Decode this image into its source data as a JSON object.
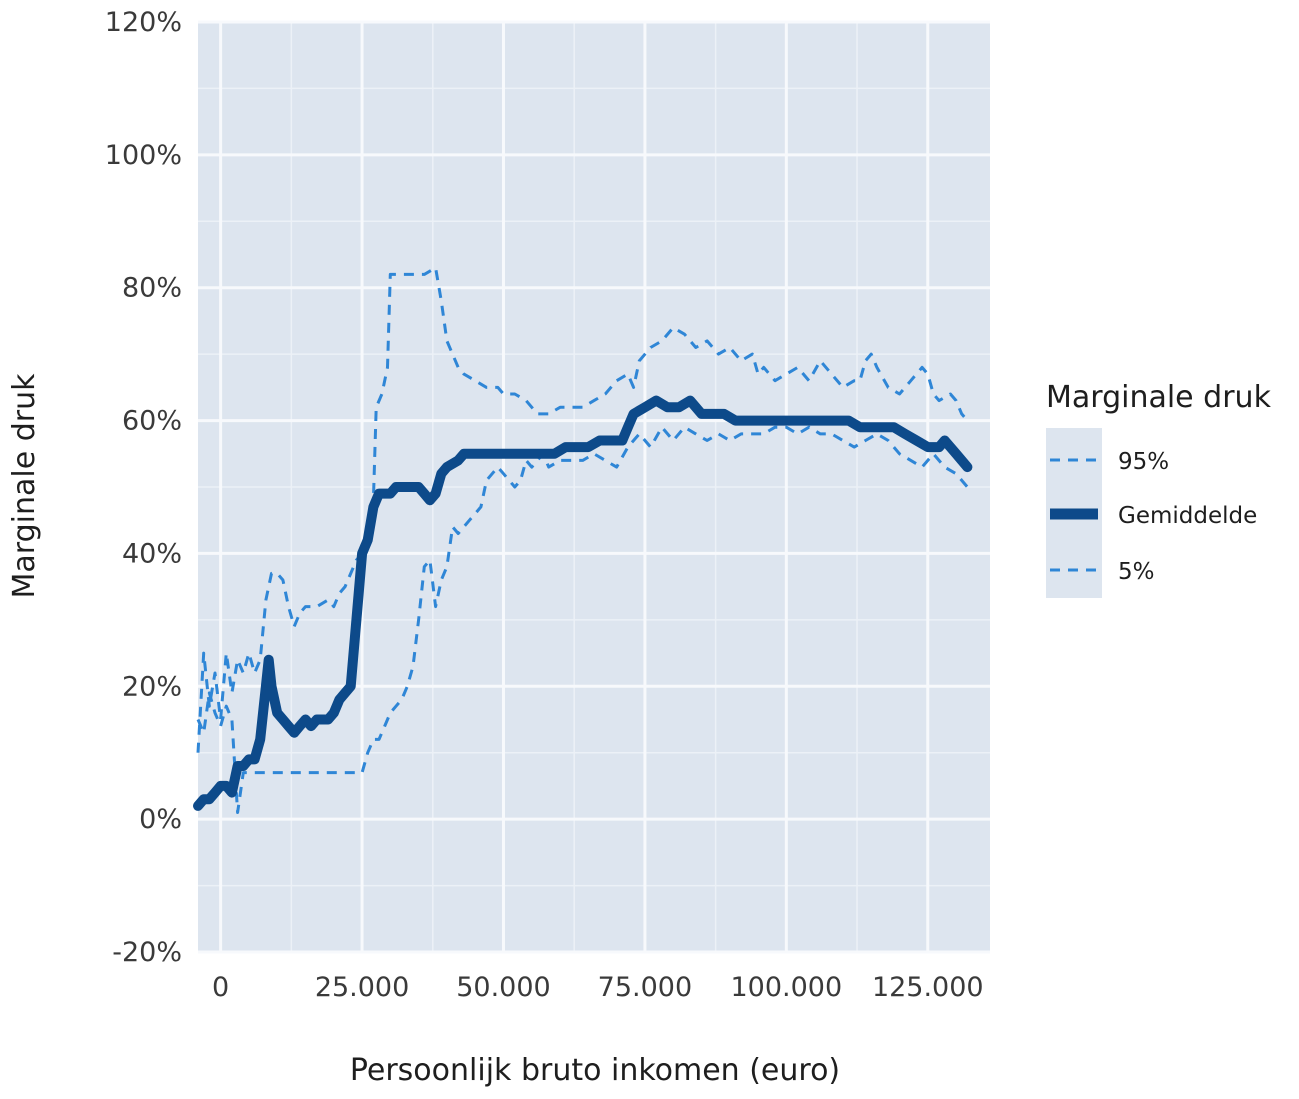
{
  "chart_data": {
    "type": "line",
    "xlabel": "Persoonlijk bruto inkomen (euro)",
    "ylabel": "Marginale druk",
    "xlim": [
      -4000,
      136000
    ],
    "ylim": [
      -20,
      120
    ],
    "x_ticks": [
      0,
      25000,
      50000,
      75000,
      100000,
      125000
    ],
    "x_tick_labels": [
      "0",
      "25.000",
      "50.000",
      "75.000",
      "100.000",
      "125.000"
    ],
    "y_ticks": [
      -20,
      0,
      20,
      40,
      60,
      80,
      100,
      120
    ],
    "y_tick_labels": [
      "-20%",
      "0%",
      "20%",
      "40%",
      "60%",
      "80%",
      "100%",
      "120%"
    ],
    "grid": true,
    "legend": {
      "title": "Marginale druk",
      "position": "right",
      "entries": [
        "95%",
        "Gemiddelde",
        "5%"
      ]
    },
    "series": [
      {
        "name": "95%",
        "style": "dashed",
        "color": "#2f86d6",
        "points": [
          [
            -4000,
            10
          ],
          [
            -3000,
            25
          ],
          [
            -2000,
            17
          ],
          [
            -1000,
            22
          ],
          [
            0,
            15
          ],
          [
            1000,
            25
          ],
          [
            2000,
            19
          ],
          [
            3000,
            24
          ],
          [
            4000,
            22
          ],
          [
            5000,
            25
          ],
          [
            6000,
            22
          ],
          [
            7000,
            24
          ],
          [
            8000,
            33
          ],
          [
            9000,
            37
          ],
          [
            10000,
            37
          ],
          [
            11000,
            36
          ],
          [
            12000,
            32
          ],
          [
            13000,
            29
          ],
          [
            14000,
            31
          ],
          [
            15000,
            32
          ],
          [
            17000,
            32
          ],
          [
            19000,
            33
          ],
          [
            20000,
            32
          ],
          [
            21000,
            34
          ],
          [
            22000,
            35
          ],
          [
            24000,
            39
          ],
          [
            25000,
            40
          ],
          [
            26000,
            41
          ],
          [
            27000,
            48
          ],
          [
            27500,
            62
          ],
          [
            28500,
            64
          ],
          [
            29500,
            68
          ],
          [
            30000,
            82
          ],
          [
            33000,
            82
          ],
          [
            36000,
            82
          ],
          [
            38000,
            83
          ],
          [
            39000,
            78
          ],
          [
            40000,
            72
          ],
          [
            42000,
            68
          ],
          [
            43000,
            67
          ],
          [
            45000,
            66
          ],
          [
            47000,
            65
          ],
          [
            49000,
            65
          ],
          [
            50000,
            64
          ],
          [
            52000,
            64
          ],
          [
            54000,
            63
          ],
          [
            56000,
            61
          ],
          [
            58000,
            61
          ],
          [
            60000,
            62
          ],
          [
            62000,
            62
          ],
          [
            64000,
            62
          ],
          [
            66000,
            63
          ],
          [
            68000,
            64
          ],
          [
            70000,
            66
          ],
          [
            72000,
            67
          ],
          [
            73000,
            65
          ],
          [
            74000,
            69
          ],
          [
            76000,
            71
          ],
          [
            78000,
            72
          ],
          [
            80000,
            74
          ],
          [
            82000,
            73
          ],
          [
            84000,
            71
          ],
          [
            86000,
            72
          ],
          [
            88000,
            70
          ],
          [
            90000,
            71
          ],
          [
            92000,
            69
          ],
          [
            94000,
            70
          ],
          [
            95000,
            67
          ],
          [
            96000,
            68
          ],
          [
            98000,
            66
          ],
          [
            100000,
            67
          ],
          [
            102000,
            68
          ],
          [
            104000,
            66
          ],
          [
            106000,
            69
          ],
          [
            108000,
            67
          ],
          [
            110000,
            65
          ],
          [
            112000,
            66
          ],
          [
            113000,
            66
          ],
          [
            114000,
            69
          ],
          [
            115000,
            70
          ],
          [
            116000,
            68
          ],
          [
            118000,
            65
          ],
          [
            120000,
            64
          ],
          [
            122000,
            66
          ],
          [
            124000,
            68
          ],
          [
            125000,
            67
          ],
          [
            126000,
            64
          ],
          [
            127000,
            63
          ],
          [
            129000,
            64
          ],
          [
            130000,
            63
          ],
          [
            131000,
            61
          ],
          [
            132000,
            60
          ]
        ]
      },
      {
        "name": "Gemiddelde",
        "style": "solid",
        "color": "#0d4a8a",
        "points": [
          [
            -4000,
            2
          ],
          [
            -3000,
            3
          ],
          [
            -2000,
            3
          ],
          [
            -1000,
            4
          ],
          [
            0,
            5
          ],
          [
            1000,
            5
          ],
          [
            2000,
            4
          ],
          [
            3000,
            8
          ],
          [
            4000,
            8
          ],
          [
            5000,
            9
          ],
          [
            6000,
            9
          ],
          [
            7000,
            12
          ],
          [
            8000,
            20
          ],
          [
            8500,
            24
          ],
          [
            9000,
            20
          ],
          [
            10000,
            16
          ],
          [
            11000,
            15
          ],
          [
            12000,
            14
          ],
          [
            13000,
            13
          ],
          [
            14000,
            14
          ],
          [
            15000,
            15
          ],
          [
            16000,
            14
          ],
          [
            17000,
            15
          ],
          [
            18000,
            15
          ],
          [
            19000,
            15
          ],
          [
            20000,
            16
          ],
          [
            21000,
            18
          ],
          [
            22000,
            19
          ],
          [
            23000,
            20
          ],
          [
            24000,
            30
          ],
          [
            25000,
            40
          ],
          [
            26000,
            42
          ],
          [
            27000,
            47
          ],
          [
            28000,
            49
          ],
          [
            30000,
            49
          ],
          [
            31000,
            50
          ],
          [
            33000,
            50
          ],
          [
            35000,
            50
          ],
          [
            36000,
            49
          ],
          [
            37000,
            48
          ],
          [
            38000,
            49
          ],
          [
            39000,
            52
          ],
          [
            40000,
            53
          ],
          [
            42000,
            54
          ],
          [
            43000,
            55
          ],
          [
            45000,
            55
          ],
          [
            47000,
            55
          ],
          [
            49000,
            55
          ],
          [
            51000,
            55
          ],
          [
            53000,
            55
          ],
          [
            55000,
            55
          ],
          [
            57000,
            55
          ],
          [
            59000,
            55
          ],
          [
            61000,
            56
          ],
          [
            63000,
            56
          ],
          [
            65000,
            56
          ],
          [
            67000,
            57
          ],
          [
            69000,
            57
          ],
          [
            71000,
            57
          ],
          [
            72000,
            59
          ],
          [
            73000,
            61
          ],
          [
            75000,
            62
          ],
          [
            77000,
            63
          ],
          [
            79000,
            62
          ],
          [
            81000,
            62
          ],
          [
            83000,
            63
          ],
          [
            85000,
            61
          ],
          [
            87000,
            61
          ],
          [
            89000,
            61
          ],
          [
            91000,
            60
          ],
          [
            93000,
            60
          ],
          [
            95000,
            60
          ],
          [
            97000,
            60
          ],
          [
            99000,
            60
          ],
          [
            101000,
            60
          ],
          [
            103000,
            60
          ],
          [
            105000,
            60
          ],
          [
            107000,
            60
          ],
          [
            109000,
            60
          ],
          [
            111000,
            60
          ],
          [
            113000,
            59
          ],
          [
            115000,
            59
          ],
          [
            117000,
            59
          ],
          [
            119000,
            59
          ],
          [
            121000,
            58
          ],
          [
            123000,
            57
          ],
          [
            125000,
            56
          ],
          [
            127000,
            56
          ],
          [
            128000,
            57
          ],
          [
            129000,
            56
          ],
          [
            130000,
            55
          ],
          [
            131000,
            54
          ],
          [
            132000,
            53
          ]
        ]
      },
      {
        "name": "5%",
        "style": "dashed",
        "color": "#2f86d6",
        "points": [
          [
            -4000,
            15
          ],
          [
            -3000,
            13
          ],
          [
            -2000,
            19
          ],
          [
            -1000,
            16
          ],
          [
            0,
            14
          ],
          [
            1000,
            17
          ],
          [
            2000,
            15
          ],
          [
            3000,
            1
          ],
          [
            4000,
            7
          ],
          [
            7000,
            7
          ],
          [
            10000,
            7
          ],
          [
            13000,
            7
          ],
          [
            16000,
            7
          ],
          [
            19000,
            7
          ],
          [
            22000,
            7
          ],
          [
            25000,
            7
          ],
          [
            26000,
            10
          ],
          [
            27000,
            12
          ],
          [
            28000,
            12
          ],
          [
            29000,
            14
          ],
          [
            30000,
            16
          ],
          [
            31000,
            17
          ],
          [
            32000,
            18
          ],
          [
            33000,
            20
          ],
          [
            34000,
            23
          ],
          [
            35000,
            30
          ],
          [
            36000,
            38
          ],
          [
            37000,
            39
          ],
          [
            38000,
            32
          ],
          [
            39000,
            36
          ],
          [
            40000,
            38
          ],
          [
            41000,
            44
          ],
          [
            42000,
            43
          ],
          [
            44000,
            45
          ],
          [
            45000,
            46
          ],
          [
            46000,
            47
          ],
          [
            47000,
            51
          ],
          [
            49000,
            53
          ],
          [
            50000,
            52
          ],
          [
            52000,
            50
          ],
          [
            53000,
            51
          ],
          [
            54000,
            54
          ],
          [
            55000,
            53
          ],
          [
            57000,
            55
          ],
          [
            58000,
            53
          ],
          [
            60000,
            54
          ],
          [
            62000,
            54
          ],
          [
            64000,
            54
          ],
          [
            66000,
            55
          ],
          [
            68000,
            54
          ],
          [
            70000,
            53
          ],
          [
            72000,
            56
          ],
          [
            73000,
            57
          ],
          [
            74000,
            58
          ],
          [
            76000,
            56
          ],
          [
            78000,
            59
          ],
          [
            80000,
            57
          ],
          [
            82000,
            59
          ],
          [
            84000,
            58
          ],
          [
            86000,
            57
          ],
          [
            88000,
            58
          ],
          [
            90000,
            57
          ],
          [
            92000,
            58
          ],
          [
            94000,
            58
          ],
          [
            96000,
            58
          ],
          [
            98000,
            59
          ],
          [
            100000,
            59
          ],
          [
            102000,
            58
          ],
          [
            104000,
            59
          ],
          [
            106000,
            58
          ],
          [
            108000,
            58
          ],
          [
            110000,
            57
          ],
          [
            112000,
            56
          ],
          [
            114000,
            57
          ],
          [
            116000,
            58
          ],
          [
            118000,
            57
          ],
          [
            120000,
            55
          ],
          [
            122000,
            54
          ],
          [
            124000,
            53
          ],
          [
            126000,
            55
          ],
          [
            128000,
            53
          ],
          [
            130000,
            52
          ],
          [
            132000,
            50
          ]
        ]
      }
    ]
  }
}
